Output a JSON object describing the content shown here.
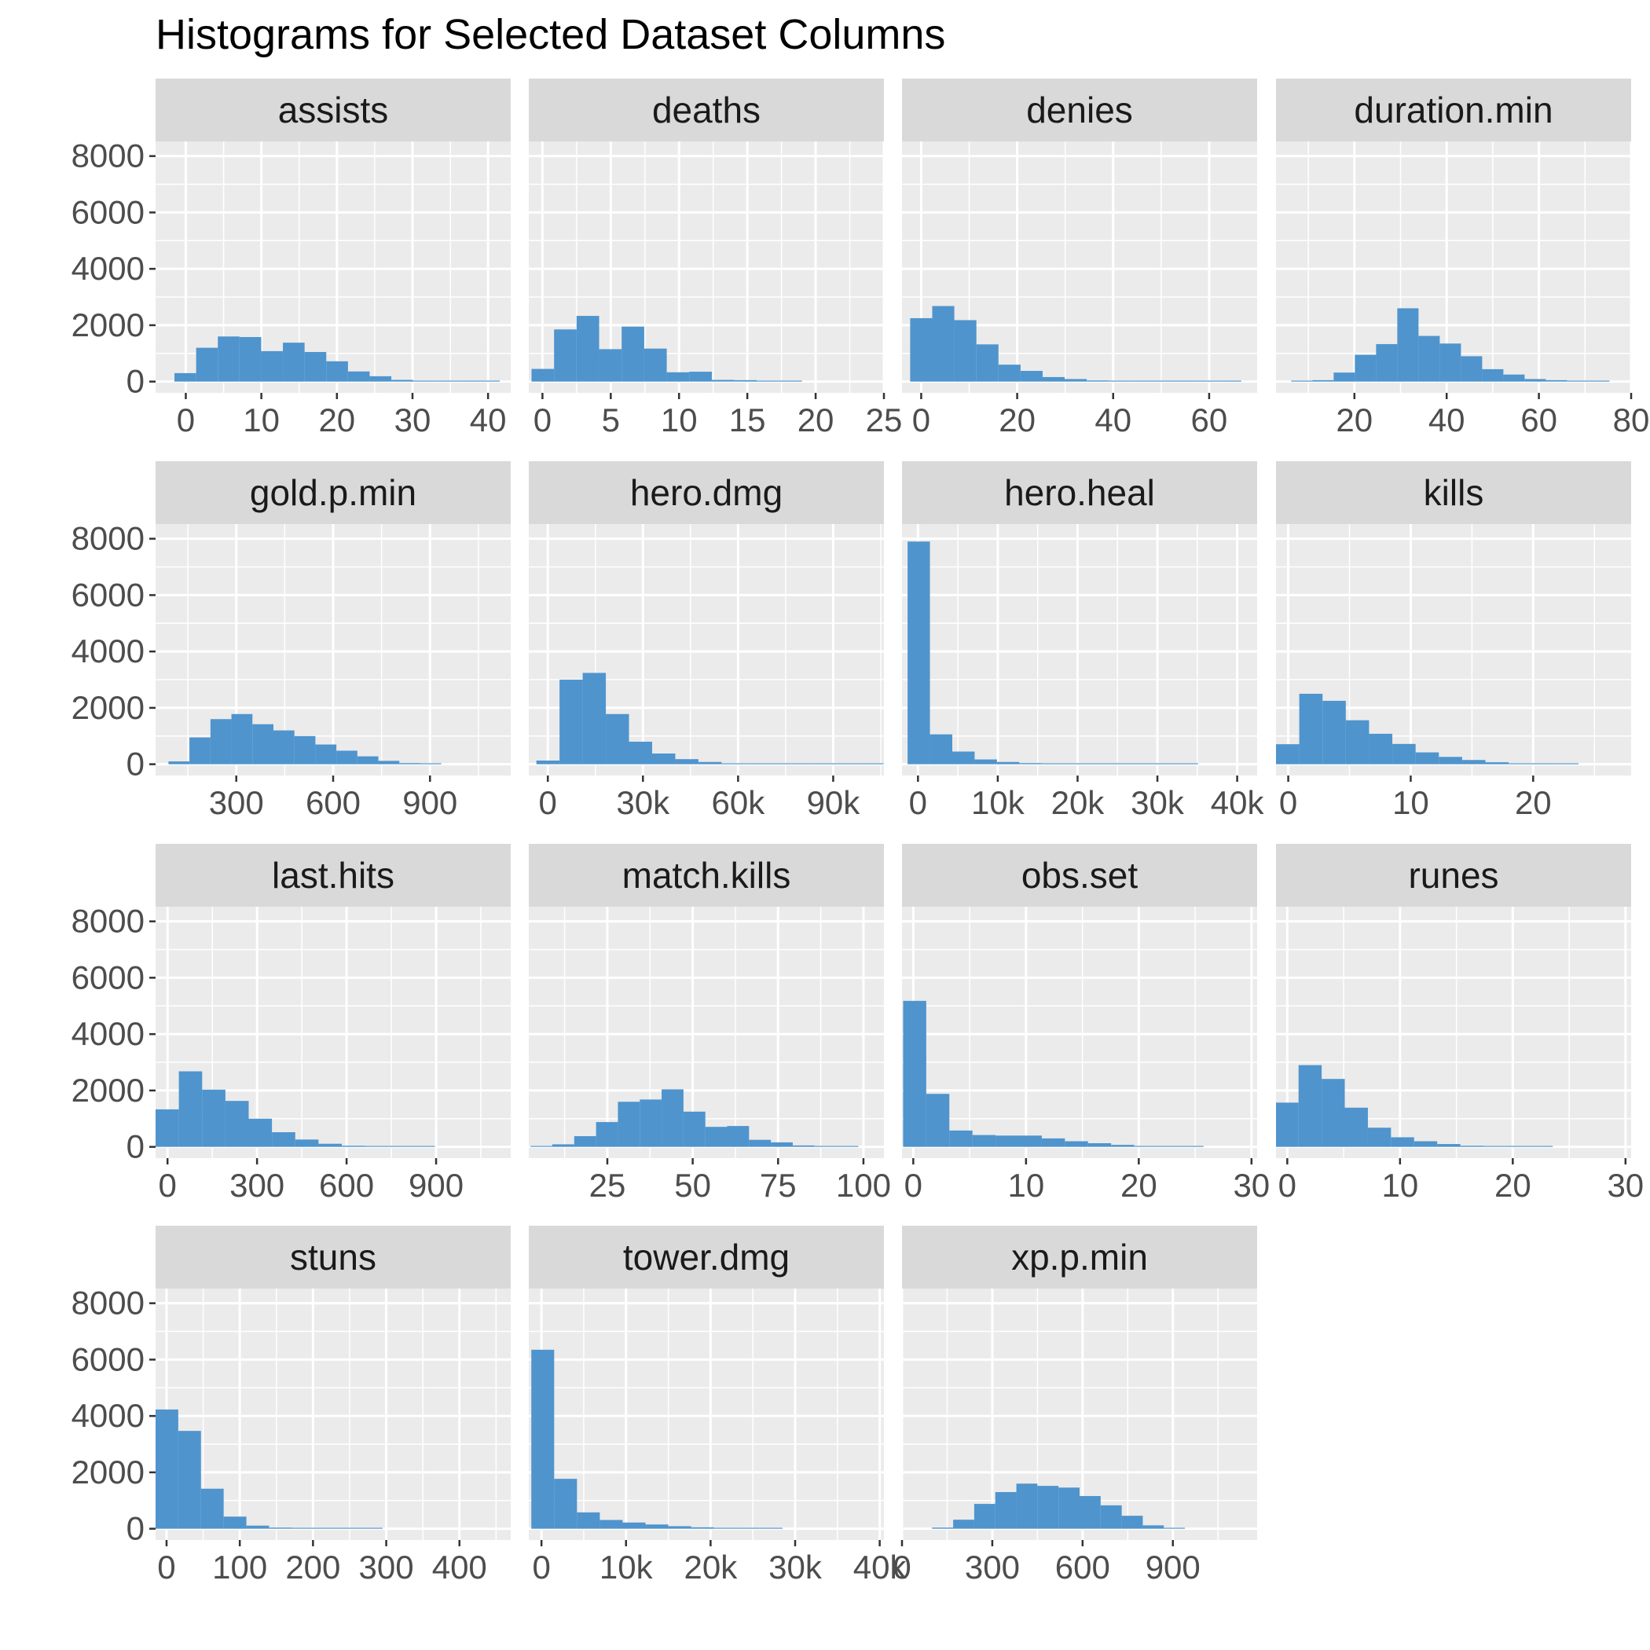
{
  "chart_data": {
    "type": "bar",
    "title": "Histograms for Selected Dataset Columns",
    "xlabel": "",
    "ylabel": "",
    "ylim": [
      0,
      8000
    ],
    "y_ticks": [
      0,
      2000,
      4000,
      6000,
      8000
    ],
    "y_tick_labels": [
      "0",
      "2000",
      "4000",
      "6000",
      "8000"
    ],
    "grid": true,
    "colors": {
      "bar": "#4f94cd",
      "panel": "#ebebeb",
      "strip": "#d9d9d9",
      "grid": "#ffffff"
    },
    "panels": [
      {
        "name": "assists",
        "xlim": [
          -4,
          43
        ],
        "x_ticks": [
          0,
          10,
          20,
          30,
          40
        ],
        "x_tick_labels": [
          "0",
          "10",
          "20",
          "30",
          "40"
        ],
        "bin_start": -1.5,
        "bin_width": 2.87,
        "counts": [
          300,
          1200,
          1600,
          1580,
          1080,
          1380,
          1050,
          720,
          360,
          190,
          60,
          20,
          10,
          5,
          2
        ]
      },
      {
        "name": "deaths",
        "xlim": [
          -1,
          25
        ],
        "x_ticks": [
          0,
          5,
          10,
          15,
          20,
          25
        ],
        "x_tick_labels": [
          "0",
          "5",
          "10",
          "15",
          "20",
          "25"
        ],
        "bin_start": -0.8,
        "bin_width": 1.65,
        "counts": [
          450,
          1850,
          2330,
          1150,
          1950,
          1170,
          330,
          350,
          60,
          50,
          15,
          5,
          0,
          0,
          0
        ]
      },
      {
        "name": "denies",
        "xlim": [
          -4,
          70
        ],
        "x_ticks": [
          0,
          20,
          40,
          60
        ],
        "x_tick_labels": [
          "0",
          "20",
          "40",
          "60"
        ],
        "bin_start": -2.3,
        "bin_width": 4.6,
        "counts": [
          2250,
          2680,
          2180,
          1320,
          600,
          380,
          160,
          90,
          40,
          20,
          5,
          3,
          2,
          1,
          1
        ]
      },
      {
        "name": "duration.min",
        "xlim": [
          3,
          80
        ],
        "x_ticks": [
          20,
          40,
          60,
          80
        ],
        "x_tick_labels": [
          "20",
          "40",
          "60",
          "80"
        ],
        "bin_start": 6.3,
        "bin_width": 4.6,
        "counts": [
          10,
          50,
          320,
          950,
          1330,
          2600,
          1620,
          1350,
          900,
          440,
          250,
          90,
          50,
          20,
          5
        ]
      },
      {
        "name": "gold.p.min",
        "xlim": [
          50,
          1150
        ],
        "x_ticks": [
          300,
          600,
          900
        ],
        "x_tick_labels": [
          "300",
          "600",
          "900"
        ],
        "bin_start": 90,
        "bin_width": 65,
        "counts": [
          100,
          950,
          1600,
          1780,
          1420,
          1200,
          1000,
          700,
          480,
          280,
          120,
          40,
          15
        ]
      },
      {
        "name": "hero.dmg",
        "xlim": [
          -6000,
          106000
        ],
        "x_ticks": [
          0,
          30000,
          60000,
          90000
        ],
        "x_tick_labels": [
          "0",
          "30k",
          "60k",
          "90k"
        ],
        "bin_start": -3600,
        "bin_width": 7300,
        "counts": [
          130,
          3000,
          3240,
          1780,
          800,
          380,
          180,
          80,
          30,
          15,
          8,
          5,
          3,
          2,
          1,
          0,
          0,
          0
        ]
      },
      {
        "name": "hero.heal",
        "xlim": [
          -2000,
          42500
        ],
        "x_ticks": [
          0,
          10000,
          20000,
          30000,
          40000
        ],
        "x_tick_labels": [
          "0",
          "10k",
          "20k",
          "30k",
          "40k"
        ],
        "bin_start": -1300,
        "bin_width": 2800,
        "counts": [
          7900,
          1060,
          450,
          170,
          80,
          40,
          20,
          10,
          5,
          3,
          2,
          1,
          1,
          0,
          0
        ]
      },
      {
        "name": "kills",
        "xlim": [
          -1,
          28
        ],
        "x_ticks": [
          0,
          10,
          20
        ],
        "x_tick_labels": [
          "0",
          "10",
          "20"
        ],
        "bin_start": -1,
        "bin_width": 1.9,
        "counts": [
          710,
          2500,
          2250,
          1560,
          1080,
          720,
          420,
          260,
          150,
          70,
          30,
          10,
          5
        ]
      },
      {
        "name": "last.hits",
        "xlim": [
          -40,
          1150
        ],
        "x_ticks": [
          0,
          300,
          600,
          900
        ],
        "x_tick_labels": [
          "0",
          "300",
          "600",
          "900"
        ],
        "bin_start": -40,
        "bin_width": 78,
        "counts": [
          1330,
          2680,
          2030,
          1630,
          1000,
          520,
          260,
          110,
          40,
          15,
          8,
          3
        ]
      },
      {
        "name": "match.kills",
        "xlim": [
          2,
          106
        ],
        "x_ticks": [
          25,
          50,
          75,
          100
        ],
        "x_tick_labels": [
          "25",
          "50",
          "75",
          "100"
        ],
        "bin_start": 2.5,
        "bin_width": 6.4,
        "counts": [
          10,
          90,
          380,
          880,
          1600,
          1680,
          2040,
          1250,
          710,
          740,
          250,
          160,
          50,
          20,
          5
        ]
      },
      {
        "name": "obs.set",
        "xlim": [
          -1,
          30.5
        ],
        "x_ticks": [
          0,
          10,
          20,
          30
        ],
        "x_tick_labels": [
          "0",
          "10",
          "20",
          "30"
        ],
        "bin_start": -0.9,
        "bin_width": 2.05,
        "counts": [
          5180,
          1880,
          580,
          420,
          400,
          400,
          300,
          200,
          130,
          70,
          30,
          15,
          5
        ]
      },
      {
        "name": "runes",
        "xlim": [
          -1,
          30.5
        ],
        "x_ticks": [
          0,
          10,
          20,
          30
        ],
        "x_tick_labels": [
          "0",
          "10",
          "20",
          "30"
        ],
        "bin_start": -1.05,
        "bin_width": 2.05,
        "counts": [
          1570,
          2900,
          2410,
          1390,
          680,
          340,
          200,
          100,
          40,
          20,
          10,
          5
        ]
      },
      {
        "name": "stuns",
        "xlim": [
          -15,
          470
        ],
        "x_ticks": [
          0,
          100,
          200,
          300,
          400
        ],
        "x_tick_labels": [
          "0",
          "100",
          "200",
          "300",
          "400"
        ],
        "bin_start": -15,
        "bin_width": 31,
        "counts": [
          4230,
          3470,
          1420,
          430,
          110,
          40,
          10,
          5,
          2,
          1
        ]
      },
      {
        "name": "tower.dmg",
        "xlim": [
          -1500,
          40500
        ],
        "x_ticks": [
          0,
          10000,
          20000,
          30000,
          40000
        ],
        "x_tick_labels": [
          "0",
          "10k",
          "20k",
          "30k",
          "40k"
        ],
        "bin_start": -1200,
        "bin_width": 2700,
        "counts": [
          6350,
          1770,
          580,
          310,
          220,
          150,
          90,
          50,
          20,
          10,
          5
        ]
      },
      {
        "name": "xp.p.min",
        "xlim": [
          0,
          1180
        ],
        "x_ticks": [
          0,
          300,
          600,
          900
        ],
        "x_tick_labels": [
          "0",
          "300",
          "600",
          "900"
        ],
        "bin_start": 100,
        "bin_width": 70,
        "counts": [
          40,
          320,
          880,
          1300,
          1600,
          1520,
          1460,
          1160,
          830,
          460,
          120,
          20
        ]
      }
    ]
  }
}
